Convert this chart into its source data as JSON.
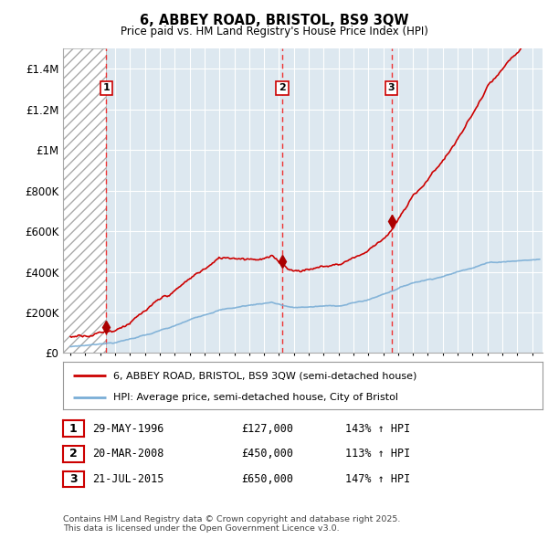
{
  "title": "6, ABBEY ROAD, BRISTOL, BS9 3QW",
  "subtitle": "Price paid vs. HM Land Registry's House Price Index (HPI)",
  "xlim_start": 1993.5,
  "xlim_end": 2025.7,
  "ylim_min": 0,
  "ylim_max": 1500000,
  "yticks": [
    0,
    200000,
    400000,
    600000,
    800000,
    1000000,
    1200000,
    1400000
  ],
  "ytick_labels": [
    "£0",
    "£200K",
    "£400K",
    "£600K",
    "£800K",
    "£1M",
    "£1.2M",
    "£1.4M"
  ],
  "xticks": [
    1994,
    1995,
    1996,
    1997,
    1998,
    1999,
    2000,
    2001,
    2002,
    2003,
    2004,
    2005,
    2006,
    2007,
    2008,
    2009,
    2010,
    2011,
    2012,
    2013,
    2014,
    2015,
    2016,
    2017,
    2018,
    2019,
    2020,
    2021,
    2022,
    2023,
    2024,
    2025
  ],
  "sale_dates": [
    1996.41,
    2008.22,
    2015.55
  ],
  "sale_prices": [
    127000,
    450000,
    650000
  ],
  "sale_labels": [
    "1",
    "2",
    "3"
  ],
  "red_line_color": "#cc0000",
  "blue_line_color": "#7aaed6",
  "sale_marker_color": "#aa0000",
  "vline_color": "#ee3333",
  "grid_color": "#cccccc",
  "legend_items": [
    "6, ABBEY ROAD, BRISTOL, BS9 3QW (semi-detached house)",
    "HPI: Average price, semi-detached house, City of Bristol"
  ],
  "table_rows": [
    [
      "1",
      "29-MAY-1996",
      "£127,000",
      "143% ↑ HPI"
    ],
    [
      "2",
      "20-MAR-2008",
      "£450,000",
      "113% ↑ HPI"
    ],
    [
      "3",
      "21-JUL-2015",
      "£650,000",
      "147% ↑ HPI"
    ]
  ],
  "footnote": "Contains HM Land Registry data © Crown copyright and database right 2025.\nThis data is licensed under the Open Government Licence v3.0.",
  "background_color": "#ffffff",
  "plot_bg_color": "#dde8f0"
}
